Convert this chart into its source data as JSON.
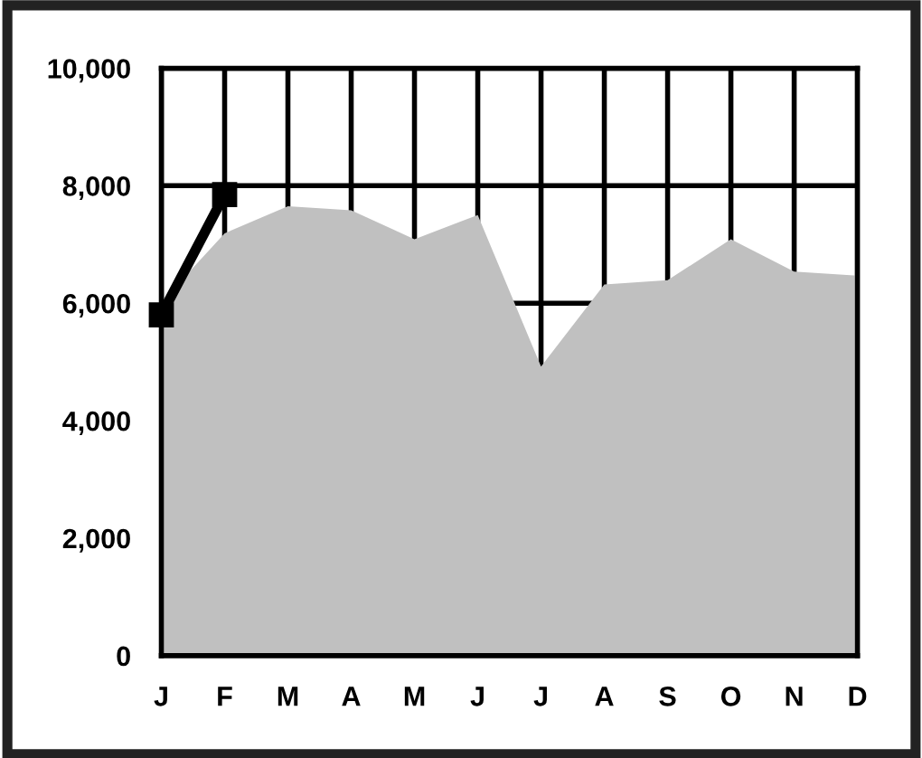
{
  "chart_data": {
    "type": "area",
    "categories": [
      "J",
      "F",
      "M",
      "A",
      "M",
      "J",
      "J",
      "A",
      "S",
      "O",
      "N",
      "D"
    ],
    "series": [
      {
        "color": "#c0c0c0",
        "values": [
          6020,
          7190,
          7650,
          7580,
          7090,
          7500,
          4920,
          6320,
          6390,
          7090,
          6540,
          6470
        ]
      },
      {
        "type": "line",
        "color": "#000000",
        "marker": "square",
        "values": [
          5800,
          7850,
          null,
          null,
          null,
          null,
          null,
          null,
          null,
          null,
          null,
          null
        ]
      }
    ],
    "ylim": [
      0,
      10000
    ],
    "yticks": [
      {
        "value": 0,
        "label": "0"
      },
      {
        "value": 2000,
        "label": "2,000"
      },
      {
        "value": 4000,
        "label": "4,000"
      },
      {
        "value": 6000,
        "label": "6,000"
      },
      {
        "value": 8000,
        "label": "8,000"
      },
      {
        "value": 10000,
        "label": "10,000"
      }
    ],
    "grid": true,
    "legend": false
  }
}
